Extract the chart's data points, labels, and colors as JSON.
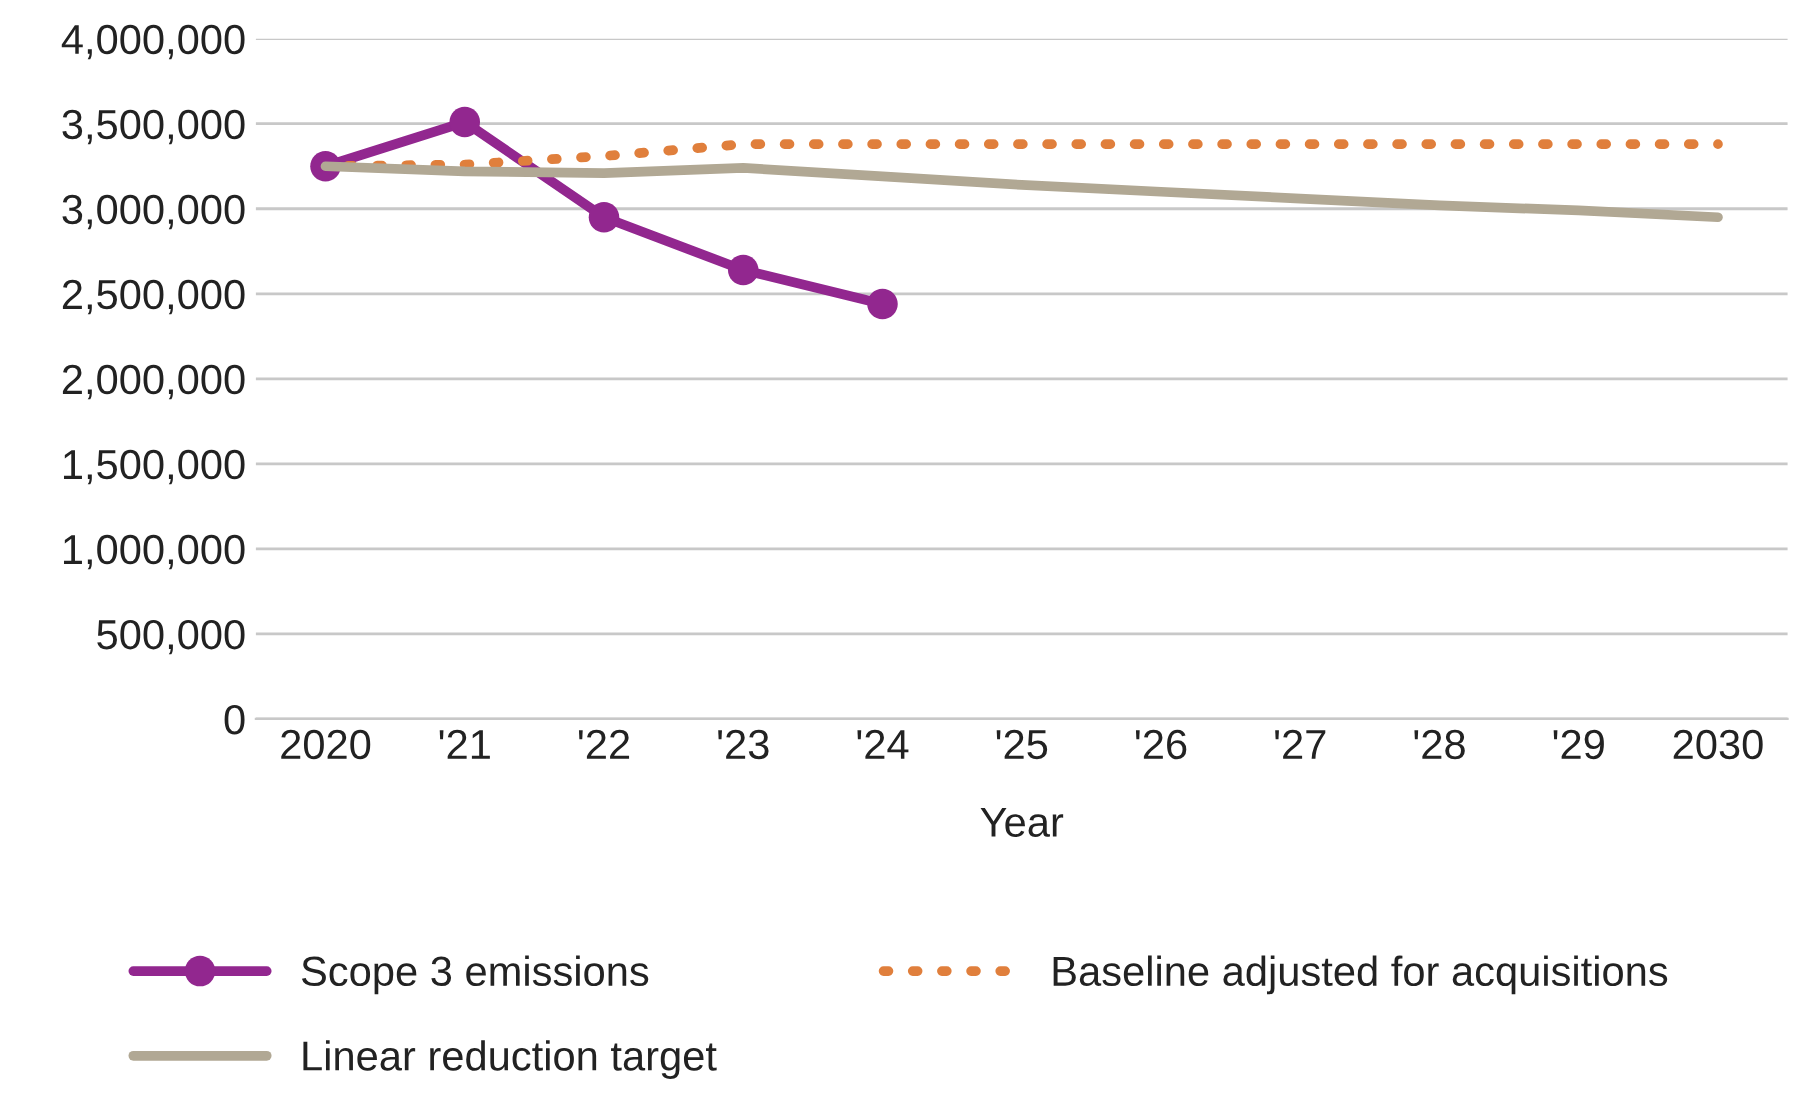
{
  "chart_data": {
    "type": "line",
    "xlabel": "Year",
    "categories": [
      "2020",
      "'21",
      "'22",
      "'23",
      "'24",
      "'25",
      "'26",
      "'27",
      "'28",
      "'29",
      "2030"
    ],
    "series": [
      {
        "name": "Scope 3 emissions",
        "color": "#92278f",
        "marker": "circle",
        "line_style": "solid",
        "values": [
          3250000,
          3510000,
          2950000,
          2640000,
          2440000,
          null,
          null,
          null,
          null,
          null,
          null
        ]
      },
      {
        "name": "Baseline adjusted for acquisitions",
        "color": "#e07f3c",
        "marker": "none",
        "line_style": "dotted",
        "values": [
          3250000,
          3260000,
          3310000,
          3380000,
          3380000,
          3380000,
          3380000,
          3380000,
          3380000,
          3380000,
          3380000
        ]
      },
      {
        "name": "Linear reduction target",
        "color": "#b1a894",
        "marker": "none",
        "line_style": "solid",
        "values": [
          3250000,
          3220000,
          3210000,
          3240000,
          3190000,
          3140000,
          3100000,
          3060000,
          3020000,
          2990000,
          2950000
        ]
      }
    ],
    "ylim": [
      0,
      4000000
    ],
    "yticks": [
      {
        "value": 0,
        "label": "0"
      },
      {
        "value": 500000,
        "label": "500,000"
      },
      {
        "value": 1000000,
        "label": "1,000,000"
      },
      {
        "value": 1500000,
        "label": "1,500,000"
      },
      {
        "value": 2000000,
        "label": "2,000,000"
      },
      {
        "value": 2500000,
        "label": "2,500,000"
      },
      {
        "value": 3000000,
        "label": "3,000,000"
      },
      {
        "value": 3500000,
        "label": "3,500,000"
      },
      {
        "value": 4000000,
        "label": "4,000,000"
      }
    ],
    "grid": "y",
    "legend": "bottom"
  }
}
